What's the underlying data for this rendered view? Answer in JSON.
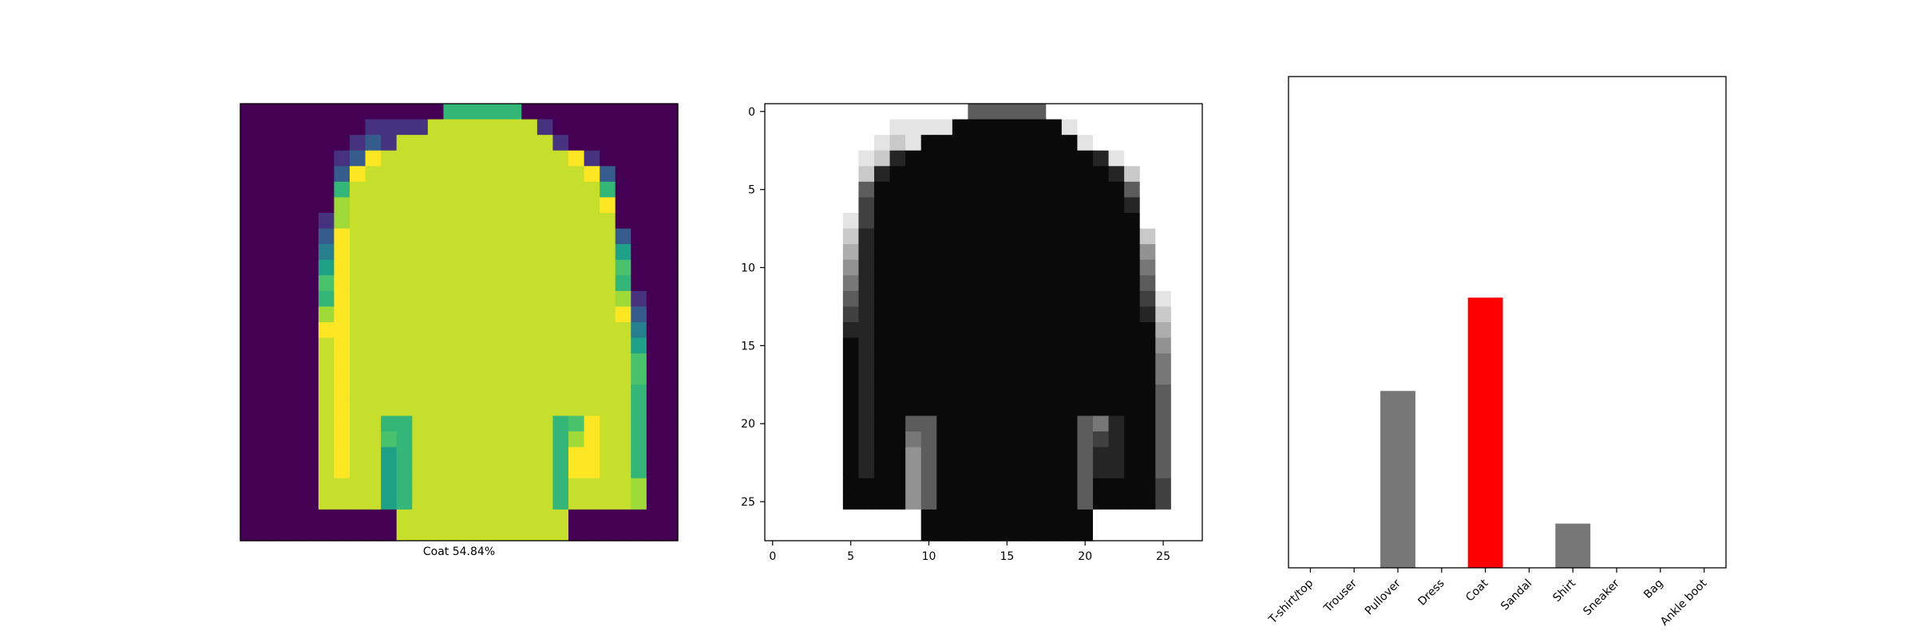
{
  "image_panel": {
    "caption": "Coat 54.84%",
    "colormap": "viridis"
  },
  "grayscale_panel": {
    "colormap": "gray_r",
    "xticks": [
      "0",
      "5",
      "10",
      "15",
      "20",
      "25"
    ],
    "yticks": [
      "0",
      "5",
      "10",
      "15",
      "20",
      "25"
    ],
    "xlim": [
      -0.5,
      27.5
    ],
    "ylim": [
      27.5,
      -0.5
    ]
  },
  "pixel_rows": [
    "0000000000000666660000000000",
    "0000000011119999999100000000",
    "0000000121999999999910000000",
    "0000001289999999999998100000",
    "0000002899999999999999820000",
    "0000006999999999999999960000",
    "0000007999999999999999980000",
    "0000017999999999999999990000",
    "0000028999999999999999992000",
    "0000038999999999999999994000",
    "0000048999999999999999995000",
    "0000058999999999999999996000",
    "0000068999999999999999997100",
    "0000078999999999999999998200",
    "0000088999999999999999999300",
    "0000098999999999999999999400",
    "0000098999999999999999999500",
    "0000098999999999999999999500",
    "0000098999999999999999999600",
    "0000098999999999999999999600",
    "0000098996699999999965899600",
    "0000098995699999999967899600",
    "0000098994699999999968899600",
    "0000098994699999999968899600",
    "0000099994699999999969999700",
    "0000099994699999999969999700",
    "0000000000999999999990000000",
    "0000000000999999999990000000"
  ],
  "chart_data": {
    "type": "bar",
    "categories": [
      "T-shirt/top",
      "Trouser",
      "Pullover",
      "Dress",
      "Coat",
      "Sandal",
      "Shirt",
      "Sneaker",
      "Bag",
      "Ankle boot"
    ],
    "values": [
      0.0,
      0.0,
      0.36,
      0.0,
      0.55,
      0.0,
      0.09,
      0.0,
      0.0,
      0.0
    ],
    "predicted_index": 4,
    "ylim": [
      0,
      1
    ],
    "bar_color": "#777777",
    "highlight_color": "#ff0000",
    "title": "",
    "xlabel": "",
    "ylabel": ""
  }
}
